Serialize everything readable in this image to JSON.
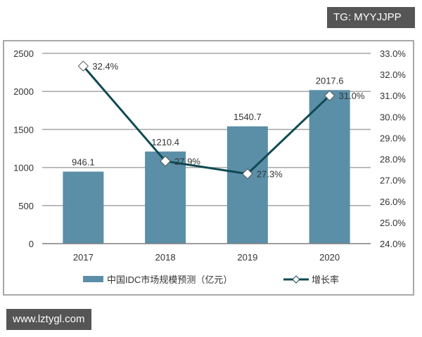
{
  "watermarks": {
    "top_right": "TG: MYYJJPP",
    "bottom_left": "www.lztygl.com"
  },
  "chart_data": {
    "type": "bar+line",
    "title": "",
    "categories": [
      "2017",
      "2018",
      "2019",
      "2020"
    ],
    "series": [
      {
        "name": "中国IDC市场规模预测（亿元）",
        "type": "bar",
        "axis": "left",
        "values": [
          946.1,
          1210.4,
          1540.7,
          2017.6
        ],
        "labels": [
          "946.1",
          "1210.4",
          "1540.7",
          "2017.6"
        ],
        "color": "#5b8fa8"
      },
      {
        "name": "增长率",
        "type": "line",
        "axis": "right",
        "values": [
          32.4,
          27.9,
          27.3,
          31.0
        ],
        "labels": [
          "32.4%",
          "27.9%",
          "27.3%",
          "31.0%"
        ],
        "color": "#0f4a52",
        "marker": "diamond-hollow"
      }
    ],
    "left_axis": {
      "ylim": [
        0,
        2500
      ],
      "ticks": [
        "0",
        "500",
        "1000",
        "1500",
        "2000",
        "2500"
      ]
    },
    "right_axis": {
      "ylim": [
        24.0,
        33.0
      ],
      "ticks": [
        "24.0%",
        "25.0%",
        "26.0%",
        "27.0%",
        "28.0%",
        "29.0%",
        "30.0%",
        "31.0%",
        "32.0%",
        "33.0%"
      ]
    },
    "xlabel": "",
    "ylabel": "",
    "grid": "horizontal at left-axis ticks",
    "legend_position": "bottom"
  },
  "legend": {
    "bar_label": "中国IDC市场规模预测（亿元）",
    "line_label": "增长率"
  }
}
